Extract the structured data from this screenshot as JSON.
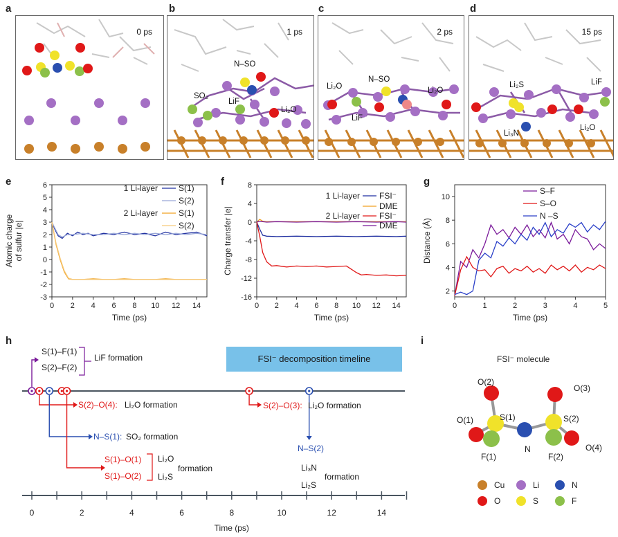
{
  "panels": {
    "a": {
      "label": "a",
      "time": "0 ps"
    },
    "b": {
      "label": "b",
      "time": "1 ps",
      "annotations": [
        "N–SO",
        "SO₂",
        "LiF",
        "Li₂O"
      ]
    },
    "c": {
      "label": "c",
      "time": "2 ps",
      "annotations": [
        "Li₂O",
        "N–SO",
        "Li₂O",
        "LiF"
      ]
    },
    "d": {
      "label": "d",
      "time": "15 ps",
      "annotations": [
        "Li₂S",
        "LiF",
        "Li₃N",
        "Li₂O"
      ]
    }
  },
  "colors": {
    "Cu": "#c8802a",
    "Li": "#a46fc4",
    "N": "#2a4fb0",
    "O": "#e01818",
    "S": "#f0e22a",
    "F": "#8cc04a"
  },
  "chart_data": [
    {
      "panel": "e",
      "type": "line",
      "xlabel": "Time (ps)",
      "ylabel": "Atomic charge of sulfur |e|",
      "xlim": [
        0,
        15
      ],
      "ylim": [
        -3,
        6
      ],
      "xticks": [
        0,
        2,
        4,
        6,
        8,
        10,
        12,
        14
      ],
      "yticks": [
        -3,
        -2,
        -1,
        0,
        1,
        2,
        3,
        4,
        5,
        6
      ],
      "legend_groups": [
        "1 Li-layer",
        "2 Li-layer"
      ],
      "series": [
        {
          "name": "S(1)",
          "group": "1 Li-layer",
          "color": "#1f2fa0",
          "x": [
            0,
            0.3,
            0.6,
            1.0,
            1.5,
            2,
            2.5,
            3,
            3.5,
            4,
            5,
            6,
            7,
            8,
            9,
            10,
            11,
            12,
            13,
            14,
            15
          ],
          "y": [
            3.0,
            2.4,
            1.9,
            1.7,
            2.1,
            1.9,
            2.2,
            2.0,
            2.1,
            1.9,
            2.1,
            2.0,
            2.2,
            2.0,
            2.1,
            1.9,
            2.2,
            2.0,
            2.1,
            2.2,
            1.9
          ]
        },
        {
          "name": "S(2)",
          "group": "1 Li-layer",
          "color": "#9aa8d8",
          "x": [
            0,
            0.3,
            0.6,
            1.0,
            1.5,
            2,
            3,
            4,
            5,
            6,
            7,
            8,
            9,
            10,
            11,
            12,
            13,
            14,
            15
          ],
          "y": [
            3.0,
            2.5,
            2.0,
            1.8,
            2.0,
            2.0,
            2.1,
            2.0,
            2.0,
            2.1,
            2.0,
            2.1,
            2.0,
            2.1,
            2.0,
            2.1,
            2.0,
            2.1,
            2.0
          ]
        },
        {
          "name": "S(1)",
          "group": "2 Li-layer",
          "color": "#f0a020",
          "x": [
            0,
            0.4,
            0.8,
            1.2,
            1.6,
            2,
            3,
            4,
            5,
            6,
            7,
            8,
            9,
            10,
            11,
            12,
            13,
            14,
            15
          ],
          "y": [
            3.0,
            1.2,
            0.0,
            -1.0,
            -1.55,
            -1.6,
            -1.6,
            -1.55,
            -1.6,
            -1.6,
            -1.55,
            -1.6,
            -1.6,
            -1.6,
            -1.55,
            -1.6,
            -1.6,
            -1.6,
            -1.6
          ]
        },
        {
          "name": "S(2)",
          "group": "2 Li-layer",
          "color": "#f6c97a",
          "x": [
            0,
            0.4,
            0.8,
            1.2,
            1.6,
            2,
            4,
            6,
            8,
            10,
            12,
            14,
            15
          ],
          "y": [
            3.0,
            1.3,
            0.1,
            -0.9,
            -1.5,
            -1.6,
            -1.6,
            -1.6,
            -1.6,
            -1.6,
            -1.6,
            -1.6,
            -1.6
          ]
        }
      ]
    },
    {
      "panel": "f",
      "type": "line",
      "xlabel": "Time (ps)",
      "ylabel": "Charge transfer |e|",
      "xlim": [
        0,
        15
      ],
      "ylim": [
        -16,
        8
      ],
      "xticks": [
        0,
        2,
        4,
        6,
        8,
        10,
        12,
        14
      ],
      "yticks": [
        -16,
        -12,
        -8,
        -4,
        0,
        4,
        8
      ],
      "legend_groups": [
        "1 Li-layer",
        "2 Li-layer"
      ],
      "series": [
        {
          "name": "FSI⁻",
          "group": "1 Li-layer",
          "color": "#1f2fa0",
          "x": [
            0,
            0.3,
            0.6,
            1,
            2,
            4,
            6,
            8,
            10,
            12,
            14,
            15
          ],
          "y": [
            0,
            -1.5,
            -2.8,
            -3.0,
            -3.1,
            -3.0,
            -3.1,
            -3.0,
            -3.1,
            -3.0,
            -3.1,
            -3.0
          ]
        },
        {
          "name": "DME",
          "group": "1 Li-layer",
          "color": "#f0a020",
          "x": [
            0,
            0.3,
            0.6,
            1,
            2,
            4,
            6,
            8,
            10,
            12,
            14,
            15
          ],
          "y": [
            0,
            0.6,
            0.2,
            0.1,
            0.1,
            0.1,
            0.1,
            0.1,
            0.1,
            0.1,
            0.1,
            0.1
          ]
        },
        {
          "name": "FSI⁻",
          "group": "2 Li-layer",
          "color": "#e01818",
          "x": [
            0,
            0.3,
            0.6,
            1,
            1.5,
            2,
            3,
            4,
            5,
            6,
            7,
            8,
            9,
            10,
            10.5,
            11,
            12,
            13,
            14,
            15
          ],
          "y": [
            0,
            -3.0,
            -6.5,
            -8.5,
            -9.4,
            -9.3,
            -9.6,
            -9.4,
            -9.5,
            -9.4,
            -9.6,
            -9.5,
            -9.4,
            -10.8,
            -11.3,
            -11.2,
            -11.4,
            -11.3,
            -11.5,
            -11.4
          ]
        },
        {
          "name": "DME",
          "group": "2 Li-layer",
          "color": "#7a1a9a",
          "x": [
            0,
            0.3,
            0.6,
            1,
            2,
            4,
            6,
            8,
            10,
            12,
            14,
            15
          ],
          "y": [
            0,
            0.2,
            0.1,
            0.0,
            0.1,
            0.0,
            0.1,
            0.0,
            0.1,
            0.0,
            0.1,
            0.0
          ]
        }
      ]
    },
    {
      "panel": "g",
      "type": "line",
      "xlabel": "Time (ps)",
      "ylabel": "Distance (Å)",
      "xlim": [
        0,
        5
      ],
      "ylim": [
        1.5,
        11
      ],
      "xticks": [
        0,
        1,
        2,
        3,
        4,
        5
      ],
      "yticks": [
        2,
        4,
        6,
        8,
        10
      ],
      "series": [
        {
          "name": "S–F",
          "color": "#7a1a9a",
          "x": [
            0,
            0.2,
            0.4,
            0.6,
            0.8,
            1.0,
            1.2,
            1.4,
            1.6,
            1.8,
            2.0,
            2.2,
            2.4,
            2.6,
            2.8,
            3.0,
            3.2,
            3.4,
            3.6,
            3.8,
            4.0,
            4.2,
            4.4,
            4.6,
            4.8,
            5.0
          ],
          "y": [
            1.6,
            4.5,
            4.0,
            5.5,
            4.8,
            6.0,
            7.6,
            6.8,
            7.2,
            6.5,
            7.4,
            6.8,
            7.6,
            6.6,
            7.2,
            6.5,
            7.8,
            6.4,
            6.8,
            6.0,
            7.2,
            6.6,
            6.4,
            5.5,
            6.0,
            5.6
          ]
        },
        {
          "name": "S–O",
          "color": "#e01818",
          "x": [
            0,
            0.2,
            0.4,
            0.6,
            0.8,
            1.0,
            1.2,
            1.4,
            1.6,
            1.8,
            2.0,
            2.2,
            2.4,
            2.6,
            2.8,
            3.0,
            3.2,
            3.4,
            3.6,
            3.8,
            4.0,
            4.2,
            4.4,
            4.6,
            4.8,
            5.0
          ],
          "y": [
            1.6,
            3.8,
            4.9,
            4.0,
            3.7,
            3.8,
            3.2,
            3.9,
            4.1,
            3.5,
            3.9,
            3.7,
            4.1,
            3.6,
            3.9,
            3.5,
            4.2,
            3.8,
            4.1,
            3.7,
            4.2,
            3.6,
            4.0,
            3.8,
            4.2,
            3.9
          ]
        },
        {
          "name": "N –S",
          "color": "#2a3fc8",
          "x": [
            0,
            0.2,
            0.4,
            0.6,
            0.8,
            1.0,
            1.2,
            1.4,
            1.6,
            1.8,
            2.0,
            2.2,
            2.4,
            2.6,
            2.8,
            3.0,
            3.2,
            3.4,
            3.6,
            3.8,
            4.0,
            4.2,
            4.4,
            4.6,
            4.8,
            5.0
          ],
          "y": [
            1.7,
            1.9,
            1.7,
            2.0,
            4.6,
            5.2,
            4.8,
            6.2,
            5.8,
            6.5,
            6.0,
            6.8,
            6.3,
            7.4,
            6.8,
            7.8,
            6.6,
            7.2,
            6.9,
            7.7,
            7.4,
            7.8,
            7.0,
            7.6,
            7.2,
            7.9
          ]
        }
      ]
    }
  ],
  "timeline": {
    "label": "h",
    "banner": "FSI⁻ decomposition timeline",
    "xlabel": "Time (ps)",
    "xticks": [
      0,
      2,
      4,
      6,
      8,
      10,
      12,
      14
    ],
    "events": [
      {
        "t": 0.0,
        "color": "#7a1a9a"
      },
      {
        "t": 0.3,
        "color": "#e01818"
      },
      {
        "t": 0.7,
        "color": "#2a4fb0"
      },
      {
        "t": 1.2,
        "color": "#e01818"
      },
      {
        "t": 1.4,
        "color": "#e01818"
      },
      {
        "t": 8.7,
        "color": "#e01818"
      },
      {
        "t": 11.1,
        "color": "#2a4fb0"
      }
    ],
    "texts": {
      "sf1": "S(1)–F(1)",
      "sf2": "S(2)–F(2)",
      "lif": "LiF formation",
      "so24": "S(2)–O(4):",
      "li2o_a": "Li₂O formation",
      "ns1": "N–S(1):",
      "so2": "SO₂ formation",
      "so11": "S(1)–O(1)",
      "so12": "S(1)–O(2)",
      "li2o_b": "Li₂O",
      "li2s_b": "Li₂S",
      "form_b": "formation",
      "so23": "S(2)–O(3):",
      "li2o_c": "Li₂O formation",
      "ns2": "N–S(2)",
      "li3n": "Li₃N",
      "li2s_d": "Li₂S",
      "form_d": "formation"
    }
  },
  "molecule": {
    "label": "i",
    "title": "FSI⁻ molecule",
    "atoms": {
      "O2": "O(2)",
      "O3": "O(3)",
      "O1": "O(1)",
      "S1": "S(1)",
      "S2": "S(2)",
      "O4": "O(4)",
      "F1": "F(1)",
      "N": "N",
      "F2": "F(2)"
    }
  },
  "legend": [
    {
      "symbol": "Cu",
      "color": "#c8802a"
    },
    {
      "symbol": "Li",
      "color": "#a46fc4"
    },
    {
      "symbol": "N",
      "color": "#2a4fb0"
    },
    {
      "symbol": "O",
      "color": "#e01818"
    },
    {
      "symbol": "S",
      "color": "#f0e22a"
    },
    {
      "symbol": "F",
      "color": "#8cc04a"
    }
  ]
}
